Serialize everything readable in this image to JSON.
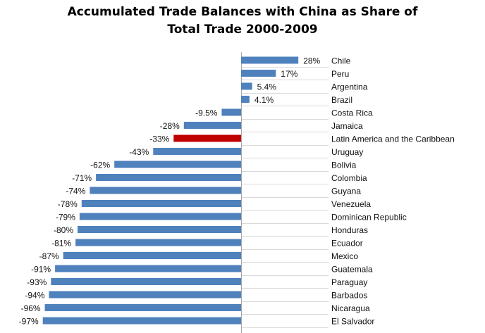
{
  "chart_data": {
    "type": "bar",
    "orientation": "horizontal",
    "title": "Accumulated Trade Balances with China as Share of Total Trade 2000-2009",
    "title_lines": [
      "Accumulated Trade Balances with China as Share of",
      "Total Trade 2000-2009"
    ],
    "xlabel": "",
    "ylabel": "",
    "xlim": [
      -100,
      30
    ],
    "grid": true,
    "legend": "none",
    "colors": {
      "bar": "#4f81bd",
      "highlight": "#c00000",
      "grid": "#d9d9d9",
      "axis": "#a6a6a6"
    },
    "categories": [
      "Chile",
      "Peru",
      "Argentina",
      "Brazil",
      "Costa Rica",
      "Jamaica",
      "Latin America and the Caribbean",
      "Uruguay",
      "Bolivia",
      "Colombia",
      "Guyana",
      "Venezuela",
      "Dominican Republic",
      "Honduras",
      "Ecuador",
      "Mexico",
      "Guatemala",
      "Paraguay",
      "Barbados",
      "Nicaragua",
      "El Salvador"
    ],
    "values": [
      28,
      17,
      5.4,
      4.1,
      -9.5,
      -28,
      -33,
      -43,
      -62,
      -71,
      -74,
      -78,
      -79,
      -80,
      -81,
      -87,
      -91,
      -93,
      -94,
      -96,
      -97
    ],
    "value_labels": [
      "28%",
      "17%",
      "5.4%",
      "4.1%",
      "-9.5%",
      "-28%",
      "-33%",
      "-43%",
      "-62%",
      "-71%",
      "-74%",
      "-78%",
      "-79%",
      "-80%",
      "-81%",
      "-87%",
      "-91%",
      "-93%",
      "-94%",
      "-96%",
      "-97%"
    ],
    "highlight_category": "Latin America and the Caribbean"
  }
}
